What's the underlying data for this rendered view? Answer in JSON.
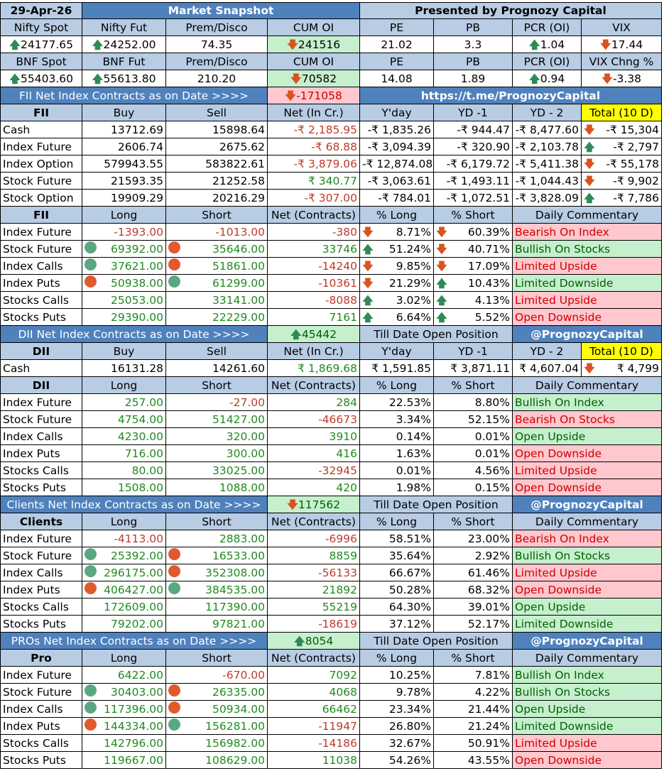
{
  "header": {
    "date": "29-Apr-26",
    "title": "Market Snapshot",
    "presenter": "Presented by Prognozy Capital"
  },
  "snapshot": {
    "headers1": [
      "Nifty Spot",
      "Nifty Fut",
      "Prem/Disco",
      "CUM OI",
      "PE",
      "PB",
      "PCR (OI)",
      "VIX"
    ],
    "values1": [
      "24177.65",
      "24252.00",
      "74.35",
      "241516",
      "21.02",
      "3.3",
      "1.04",
      "17.44"
    ],
    "headers2": [
      "BNF Spot",
      "BNF Fut",
      "Prem/Disco",
      "CUM OI",
      "PE",
      "PB",
      "PCR (OI)",
      "VIX Chng %"
    ],
    "values2": [
      "55403.60",
      "55613.80",
      "210.20",
      "70582",
      "14.08",
      "1.89",
      "0.94",
      "-3.38"
    ]
  },
  "fii_banner": {
    "label": "FII  Net Index Contracts as on Date >>>>",
    "value": "-171058",
    "link": "https://t.me/PrognozyCapital"
  },
  "fii_cash": {
    "headers": [
      "FII",
      "Buy",
      "Sell",
      "Net (In Cr.)",
      "Y'day",
      "YD -1",
      "YD - 2",
      "Total (10 D)"
    ],
    "rows": [
      [
        "Cash",
        "13712.69",
        "15898.64",
        "-₹ 2,185.95",
        "-₹ 1,835.26",
        "-₹ 944.47",
        "-₹ 8,477.60",
        "-₹ 15,304"
      ],
      [
        "Index Future",
        "2606.74",
        "2675.62",
        "-₹ 68.88",
        "-₹ 3,094.39",
        "-₹ 320.90",
        "-₹ 2,103.78",
        "-₹ 2,797"
      ],
      [
        "Index Option",
        "579943.55",
        "583822.61",
        "-₹ 3,879.06",
        "-₹ 12,874.08",
        "-₹ 6,179.72",
        "-₹ 5,411.38",
        "-₹ 55,178"
      ],
      [
        "Stock Future",
        "21593.35",
        "21252.58",
        "₹ 340.77",
        "-₹ 3,063.61",
        "-₹ 1,493.11",
        "-₹ 1,044.43",
        "-₹ 9,902"
      ],
      [
        "Stock Option",
        "19909.29",
        "20216.29",
        "-₹ 307.00",
        "-₹ 784.01",
        "-₹ 1,072.51",
        "-₹ 3,828.09",
        "-₹ 7,786"
      ]
    ]
  },
  "fii_pos": {
    "headers": [
      "FII",
      "Long",
      "Short",
      "Net (Contracts)",
      "% Long",
      "% Short",
      "Daily Commentary"
    ],
    "rows": [
      [
        "Index Future",
        "-1393.00",
        "-1013.00",
        "-380",
        "8.71%",
        "60.39%",
        "Bearish On Index"
      ],
      [
        "Stock Future",
        "69392.00",
        "35646.00",
        "33746",
        "51.24%",
        "40.71%",
        "Bullish On Stocks"
      ],
      [
        "Index Calls",
        "37621.00",
        "51861.00",
        "-14240",
        "9.85%",
        "17.09%",
        "Limited Upside"
      ],
      [
        "Index Puts",
        "50938.00",
        "61299.00",
        "-10361",
        "21.29%",
        "10.43%",
        "Limited Downside"
      ],
      [
        "Stocks Calls",
        "25053.00",
        "33141.00",
        "-8088",
        "3.02%",
        "4.13%",
        "Limited Upside"
      ],
      [
        "Stocks Puts",
        "29390.00",
        "22229.00",
        "7161",
        "6.64%",
        "5.52%",
        "Open Downside"
      ]
    ]
  },
  "dii_banner": {
    "label": "DII Net Index Contracts as on Date >>>>",
    "value": "45442",
    "mid": "Till Date Open Position",
    "handle": "@PrognozyCapital"
  },
  "dii_cash": {
    "headers": [
      "DII",
      "Buy",
      "Sell",
      "Net (In Cr.)",
      "Y'day",
      "YD -1",
      "YD - 2",
      "Total (10 D)"
    ],
    "row": [
      "Cash",
      "16131.28",
      "14261.60",
      "₹ 1,869.68",
      "₹ 1,591.85",
      "₹ 3,871.11",
      "₹ 4,607.04",
      "₹ 4,799"
    ]
  },
  "dii_pos": {
    "headers": [
      "DII",
      "Long",
      "Short",
      "Net (Contracts)",
      "% Long",
      "% Short",
      "Daily Commentary"
    ],
    "rows": [
      [
        "Index Future",
        "257.00",
        "-27.00",
        "284",
        "22.53%",
        "8.80%",
        "Bullish On Index"
      ],
      [
        "Stock Future",
        "4754.00",
        "51427.00",
        "-46673",
        "3.34%",
        "52.15%",
        "Bearish On Stocks"
      ],
      [
        "Index Calls",
        "4230.00",
        "320.00",
        "3910",
        "0.14%",
        "0.01%",
        "Open Upside"
      ],
      [
        "Index Puts",
        "716.00",
        "300.00",
        "416",
        "1.63%",
        "0.01%",
        "Open Downside"
      ],
      [
        "Stocks Calls",
        "80.00",
        "33025.00",
        "-32945",
        "0.01%",
        "4.56%",
        "Limited Upside"
      ],
      [
        "Stocks Puts",
        "1508.00",
        "1088.00",
        "420",
        "1.98%",
        "0.15%",
        "Open Downside"
      ]
    ]
  },
  "clients_banner": {
    "label": "Clients  Net Index Contracts as on Date >>>>",
    "value": "117562",
    "mid": "Till Date Open Position",
    "handle": "@PrognozyCapital"
  },
  "clients_pos": {
    "headers": [
      "Clients",
      "Long",
      "Short",
      "Net (Contracts)",
      "% Long",
      "% Short",
      "Daily Commentary"
    ],
    "rows": [
      [
        "Index Future",
        "-4113.00",
        "2883.00",
        "-6996",
        "58.51%",
        "23.00%",
        "Bearish On Index"
      ],
      [
        "Stock Future",
        "25392.00",
        "16533.00",
        "8859",
        "35.64%",
        "2.92%",
        "Bullish On Stocks"
      ],
      [
        "Index Calls",
        "296175.00",
        "352308.00",
        "-56133",
        "66.67%",
        "61.46%",
        "Limited Upside"
      ],
      [
        "Index Puts",
        "406427.00",
        "384535.00",
        "21892",
        "50.28%",
        "68.32%",
        "Open Downside"
      ],
      [
        "Stocks Calls",
        "172609.00",
        "117390.00",
        "55219",
        "64.30%",
        "39.01%",
        "Open Upside"
      ],
      [
        "Stocks Puts",
        "79202.00",
        "97821.00",
        "-18619",
        "37.12%",
        "52.17%",
        "Limited Downside"
      ]
    ]
  },
  "pro_banner": {
    "label": "PROs Net Index Contracts as on Date >>>>",
    "value": "8054",
    "mid": "Till Date Open Position",
    "handle": "@PrognozyCapital"
  },
  "pro_pos": {
    "headers": [
      "Pro",
      "Long",
      "Short",
      "Net (Contracts)",
      "% Long",
      "% Short",
      "Daily Commentary"
    ],
    "rows": [
      [
        "Index Future",
        "6422.00",
        "-670.00",
        "7092",
        "10.25%",
        "7.81%",
        "Bullish On Index"
      ],
      [
        "Stock Future",
        "30403.00",
        "26335.00",
        "4068",
        "9.78%",
        "4.22%",
        "Bullish On Stocks"
      ],
      [
        "Index Calls",
        "117396.00",
        "50934.00",
        "66462",
        "23.34%",
        "21.44%",
        "Open Upside"
      ],
      [
        "Index Puts",
        "144334.00",
        "156281.00",
        "-11947",
        "26.80%",
        "21.24%",
        "Limited Downside"
      ],
      [
        "Stocks Calls",
        "142796.00",
        "156982.00",
        "-14186",
        "32.67%",
        "50.91%",
        "Limited Upside"
      ],
      [
        "Stocks Puts",
        "119667.00",
        "108629.00",
        "11038",
        "54.26%",
        "43.55%",
        "Open Downside"
      ]
    ]
  },
  "colors": {
    "header_blue": "#4f81bd",
    "light_blue": "#b8cce4",
    "bullish_green": "#c6efce",
    "bearish_red": "#ffc7ce",
    "highlight_yellow": "#ffff00"
  }
}
